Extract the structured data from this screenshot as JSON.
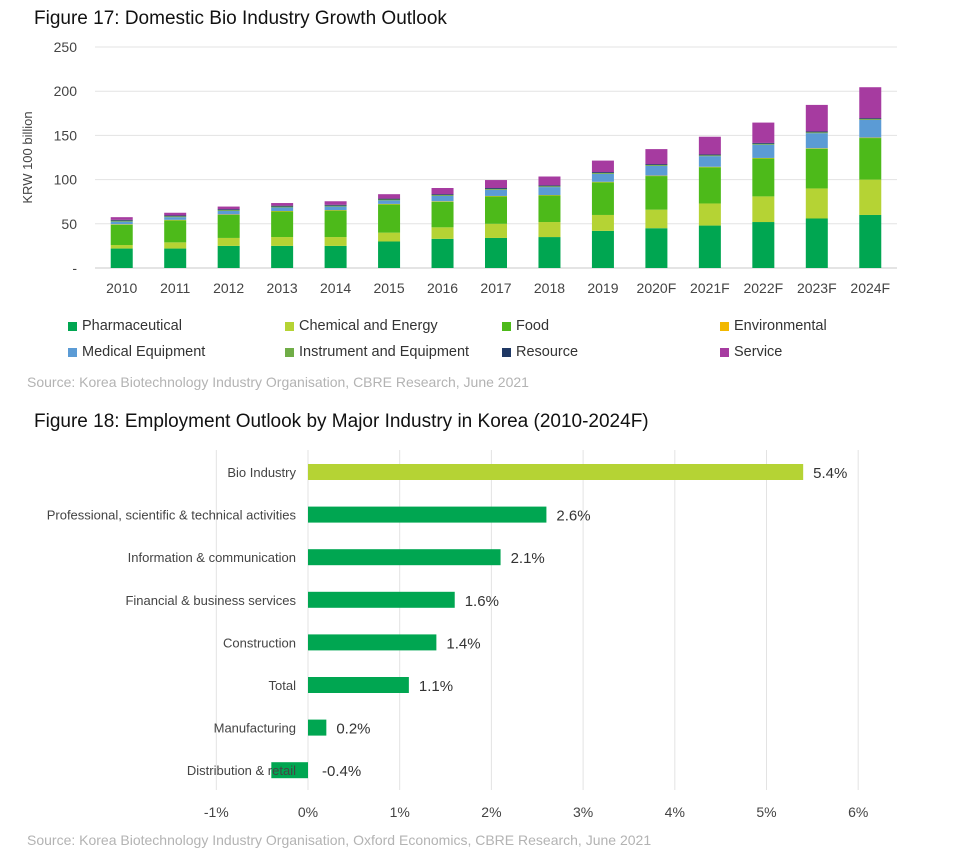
{
  "fig17": {
    "title": "Figure 17: Domestic Bio Industry Growth Outlook",
    "source": "Source: Korea Biotechnology Industry Organisation, CBRE Research, June 2021"
  },
  "fig18": {
    "title": "Figure 18: Employment Outlook by Major Industry in Korea (2010-2024F)",
    "source": "Source: Korea Biotechnology Industry Organisation, Oxford Economics, CBRE Research, June 2021"
  },
  "chart_data": [
    {
      "type": "bar",
      "stacked": true,
      "title": "Figure 17: Domestic Bio Industry Growth Outlook",
      "ylabel": "KRW 100 billion",
      "xlabel": "",
      "ylim": [
        0,
        250
      ],
      "yticks": [
        0,
        50,
        100,
        150,
        200,
        250
      ],
      "ytick_labels": [
        "-",
        "50",
        "100",
        "150",
        "200",
        "250"
      ],
      "grid": true,
      "legend_position": "bottom",
      "categories": [
        "2010",
        "2011",
        "2012",
        "2013",
        "2014",
        "2015",
        "2016",
        "2017",
        "2018",
        "2019",
        "2020F",
        "2021F",
        "2022F",
        "2023F",
        "2024F"
      ],
      "series": [
        {
          "name": "Pharmaceutical",
          "color": "#00a651",
          "values": [
            22,
            22,
            25,
            25,
            25,
            30,
            33,
            34,
            35,
            42,
            45,
            48,
            52,
            56,
            60
          ]
        },
        {
          "name": "Chemical and Energy",
          "color": "#b5d334",
          "values": [
            4,
            7,
            9,
            10,
            10,
            10,
            13,
            16,
            17,
            18,
            21,
            25,
            29,
            34,
            40
          ]
        },
        {
          "name": "Food",
          "color": "#4dba1a",
          "values": [
            23,
            25,
            26,
            29,
            30,
            32,
            29,
            31,
            30,
            37,
            38,
            41,
            43,
            45,
            47
          ]
        },
        {
          "name": "Environmental",
          "color": "#f2b800",
          "values": [
            0.5,
            0.5,
            0.5,
            0.5,
            0.5,
            0.5,
            0.5,
            0.5,
            0.5,
            0.5,
            0.5,
            0.5,
            0.5,
            0.5,
            0.5
          ]
        },
        {
          "name": "Medical Equipment",
          "color": "#5b9bd5",
          "values": [
            3,
            3,
            4,
            4,
            4,
            4,
            6,
            7,
            9,
            9,
            11,
            12,
            15,
            17,
            20
          ]
        },
        {
          "name": "Instrument and Equipment",
          "color": "#70ad47",
          "values": [
            1,
            1,
            1,
            1,
            1,
            1,
            1,
            1,
            1,
            1,
            1,
            1,
            1,
            1,
            1
          ]
        },
        {
          "name": "Resource",
          "color": "#1f3864",
          "values": [
            1,
            1,
            1,
            1,
            1,
            1,
            1,
            1,
            1,
            1,
            1,
            1,
            1,
            1,
            1
          ]
        },
        {
          "name": "Service",
          "color": "#a63ba0",
          "values": [
            3,
            3,
            3,
            3,
            4,
            5,
            7,
            9,
            10,
            13,
            17,
            20,
            23,
            30,
            35
          ]
        }
      ]
    },
    {
      "type": "bar",
      "orientation": "horizontal",
      "title": "Figure 18: Employment Outlook by Major Industry in Korea (2010-2024F)",
      "xlabel": "",
      "ylabel": "",
      "xlim": [
        -1,
        6
      ],
      "xticks": [
        -1,
        0,
        1,
        2,
        3,
        4,
        5,
        6
      ],
      "xtick_labels": [
        "-1%",
        "0%",
        "1%",
        "2%",
        "3%",
        "4%",
        "5%",
        "6%"
      ],
      "grid": true,
      "categories": [
        "Bio Industry",
        "Professional, scientific & technical activities",
        "Information & communication",
        "Financial & business services",
        "Construction",
        "Total",
        "Manufacturing",
        "Distribution & retail"
      ],
      "values": [
        5.4,
        2.6,
        2.1,
        1.6,
        1.4,
        1.1,
        0.2,
        -0.4
      ],
      "data_labels": [
        "5.4%",
        "2.6%",
        "2.1%",
        "1.6%",
        "1.4%",
        "1.1%",
        "0.2%",
        "-0.4%"
      ],
      "colors": [
        "#b5d334",
        "#00a651",
        "#00a651",
        "#00a651",
        "#00a651",
        "#00a651",
        "#00a651",
        "#00a651"
      ]
    }
  ]
}
